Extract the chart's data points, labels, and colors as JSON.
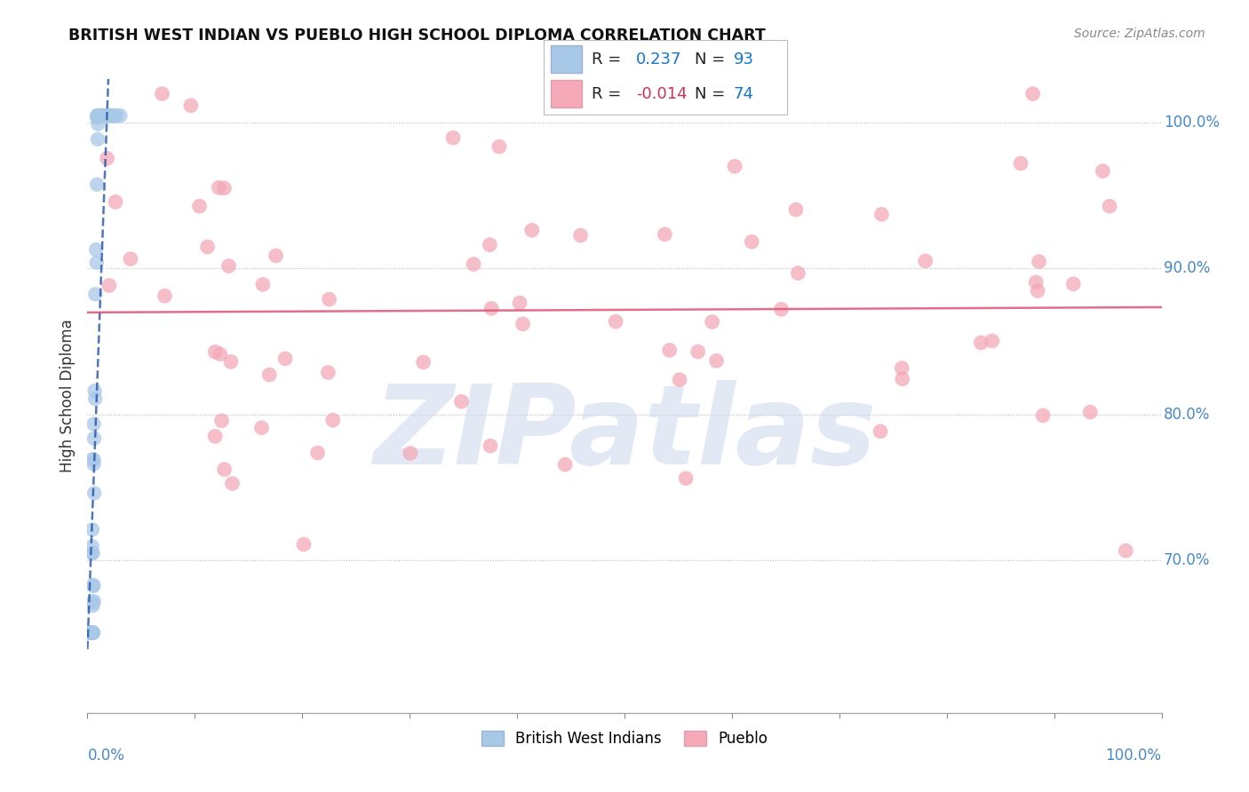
{
  "title": "BRITISH WEST INDIAN VS PUEBLO HIGH SCHOOL DIPLOMA CORRELATION CHART",
  "source": "Source: ZipAtlas.com",
  "ylabel": "High School Diploma",
  "xlim": [
    0.0,
    1.0
  ],
  "ylim": [
    0.595,
    1.03
  ],
  "yticks": [
    0.7,
    0.8,
    0.9,
    1.0
  ],
  "ytick_labels": [
    "70.0%",
    "80.0%",
    "90.0%",
    "100.0%"
  ],
  "r_blue": 0.237,
  "n_blue": 93,
  "r_pink": -0.014,
  "n_pink": 74,
  "blue_color": "#a8c8e8",
  "pink_color": "#f4a8b8",
  "blue_line_color": "#2255aa",
  "pink_line_color": "#dd5577",
  "grid_color": "#bbbbbb",
  "watermark_text": "ZIPatlas",
  "title_color": "#111111",
  "axis_label_color": "#4488cc",
  "legend_r_color_blue": "#1177cc",
  "legend_r_color_pink": "#cc3355",
  "legend_n_color": "#1177cc",
  "source_color": "#888888"
}
